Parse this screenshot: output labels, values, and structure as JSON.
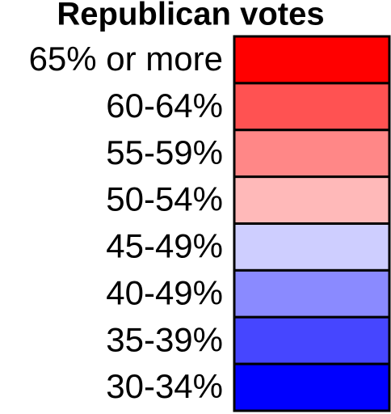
{
  "legend": {
    "title": "Republican votes",
    "items": [
      {
        "label": "65% or more",
        "color": "#ff0000"
      },
      {
        "label": "60-64%",
        "color": "#ff5252"
      },
      {
        "label": "55-59%",
        "color": "#ff8787"
      },
      {
        "label": "50-54%",
        "color": "#ffb9b9"
      },
      {
        "label": "45-49%",
        "color": "#ceceff"
      },
      {
        "label": "40-49%",
        "color": "#8a8aff"
      },
      {
        "label": "35-39%",
        "color": "#4646ff"
      },
      {
        "label": "30-34%",
        "color": "#0000ff"
      }
    ]
  }
}
